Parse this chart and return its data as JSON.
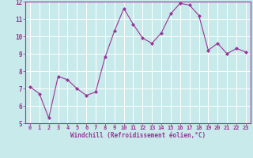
{
  "x": [
    0,
    1,
    2,
    3,
    4,
    5,
    6,
    7,
    8,
    9,
    10,
    11,
    12,
    13,
    14,
    15,
    16,
    17,
    18,
    19,
    20,
    21,
    22,
    23
  ],
  "y": [
    7.1,
    6.7,
    5.3,
    7.7,
    7.5,
    7.0,
    6.6,
    6.8,
    8.8,
    10.3,
    11.6,
    10.7,
    9.9,
    9.6,
    10.2,
    11.3,
    11.9,
    11.8,
    11.2,
    9.2,
    9.6,
    9.0,
    9.3,
    9.1
  ],
  "line_color": "#993399",
  "marker": "D",
  "marker_size": 2.0,
  "xlabel": "Windchill (Refroidissement éolien,°C)",
  "ylim": [
    5,
    12
  ],
  "xlim": [
    -0.5,
    23.5
  ],
  "yticks": [
    5,
    6,
    7,
    8,
    9,
    10,
    11,
    12
  ],
  "xticks": [
    0,
    1,
    2,
    3,
    4,
    5,
    6,
    7,
    8,
    9,
    10,
    11,
    12,
    13,
    14,
    15,
    16,
    17,
    18,
    19,
    20,
    21,
    22,
    23
  ],
  "bg_color": "#c8eaea",
  "grid_color": "#ffffff",
  "label_color": "#993399",
  "tick_color": "#993399",
  "border_color": "#993399",
  "xlabel_fontsize": 5.5,
  "tick_fontsize_x": 5.0,
  "tick_fontsize_y": 5.5
}
